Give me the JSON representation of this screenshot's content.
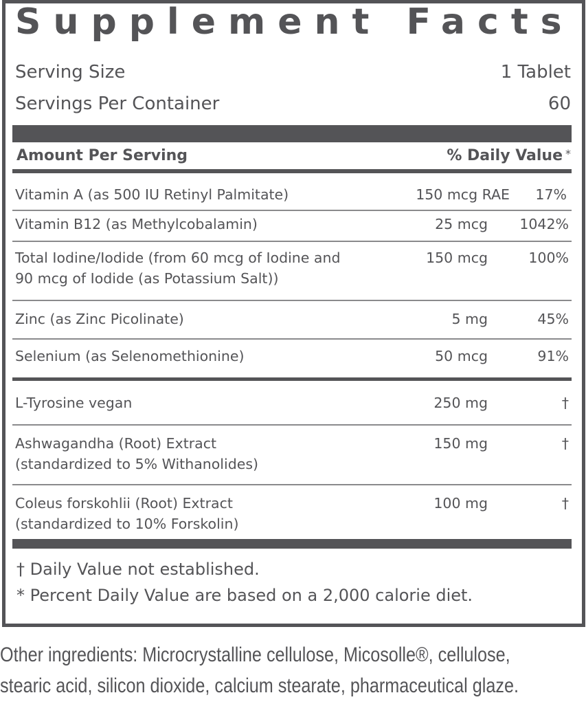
{
  "title": "Supplement Facts",
  "serving_size": {
    "label": "Serving Size",
    "value": "1 Tablet"
  },
  "servings_per_container": {
    "label": "Servings Per Container",
    "value": "60"
  },
  "header": {
    "amount": "Amount Per Serving",
    "dv": "% Daily Value",
    "asterisk": "*"
  },
  "rows": [
    {
      "name": "Vitamin A (as 500 IU Retinyl Palmitate)",
      "amount": "150 mcg RAE",
      "dv": "17%"
    },
    {
      "name": "Vitamin B12 (as Methylcobalamin)",
      "amount": "25 mcg",
      "dv": "1042%"
    },
    {
      "name": "Total Iodine/Iodide (from 60 mcg of Iodine and",
      "name2": "90 mcg of Iodide (as Potassium Salt))",
      "amount": "150 mcg",
      "dv": "100%"
    },
    {
      "name": "Zinc (as Zinc Picolinate)",
      "amount": "5 mg",
      "dv": "45%"
    },
    {
      "name": "Selenium (as Selenomethionine)",
      "amount": "50 mcg",
      "dv": "91%"
    },
    {
      "name": "L-Tyrosine vegan",
      "amount": "250 mg",
      "dv": "†"
    },
    {
      "name": "Ashwagandha (Root) Extract",
      "name2": "(standardized to 5% Withanolides)",
      "amount": "150 mg",
      "dv": "†"
    },
    {
      "name": "Coleus forskohlii (Root) Extract",
      "name2": "(standardized to 10% Forskolin)",
      "amount": "100 mg",
      "dv": "†"
    }
  ],
  "footnotes": [
    "† Daily Value not established.",
    "* Percent Daily Value are based on a 2,000 calorie diet."
  ],
  "other_ingredients": [
    "Other ingredients: Microcrystalline cellulose, Micosolle®, cellulose,",
    "stearic acid, silicon dioxide, calcium stearate, pharmaceutical glaze."
  ]
}
